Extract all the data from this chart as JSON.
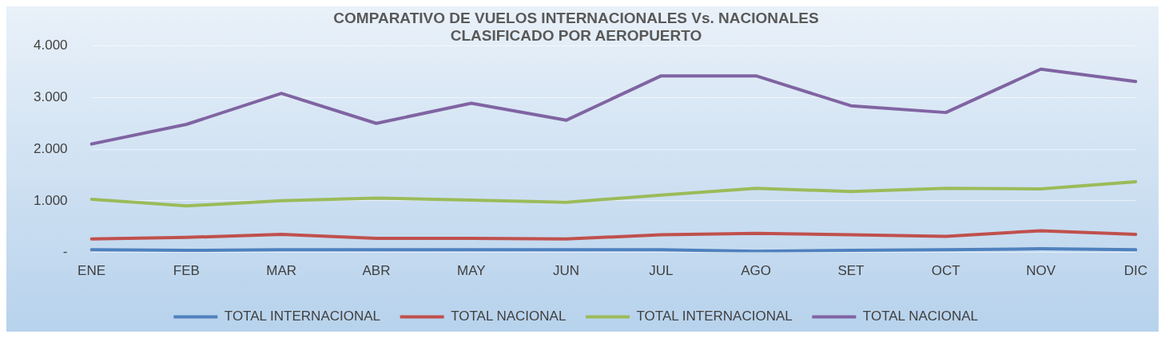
{
  "chart_data": {
    "type": "line",
    "title": [
      "COMPARATIVO DE VUELOS INTERNACIONALES Vs. NACIONALES",
      "CLASIFICADO POR AEROPUERTO"
    ],
    "categories": [
      "ENE",
      "FEB",
      "MAR",
      "ABR",
      "MAY",
      "JUN",
      "JUL",
      "AGO",
      "SET",
      "OCT",
      "NOV",
      "DIC"
    ],
    "series": [
      {
        "name": "TOTAL INTERNACIONAL",
        "color": "#4f81bd",
        "values": [
          50,
          40,
          50,
          50,
          50,
          50,
          50,
          20,
          40,
          50,
          70,
          50
        ]
      },
      {
        "name": "TOTAL NACIONAL",
        "color": "#c0504d",
        "values": [
          260,
          290,
          350,
          270,
          270,
          260,
          340,
          370,
          340,
          310,
          420,
          350
        ]
      },
      {
        "name": "TOTAL INTERNACIONAL",
        "color": "#9bbb59",
        "values": [
          1030,
          900,
          1000,
          1050,
          1015,
          970,
          1110,
          1240,
          1180,
          1240,
          1230,
          1370
        ]
      },
      {
        "name": "TOTAL NACIONAL",
        "color": "#8064a2",
        "values": [
          2100,
          2480,
          3080,
          2500,
          2890,
          2560,
          3420,
          3420,
          2840,
          2710,
          3550,
          3310
        ]
      }
    ],
    "ylim": [
      0,
      4000
    ],
    "yticks": [
      {
        "value": 0,
        "label": "-"
      },
      {
        "value": 1000,
        "label": "1.000"
      },
      {
        "value": 2000,
        "label": "2.000"
      },
      {
        "value": 3000,
        "label": "3.000"
      },
      {
        "value": 4000,
        "label": "4.000"
      }
    ],
    "grid": "y",
    "legend": "bottom",
    "marker": "none",
    "line_style": "solid"
  }
}
